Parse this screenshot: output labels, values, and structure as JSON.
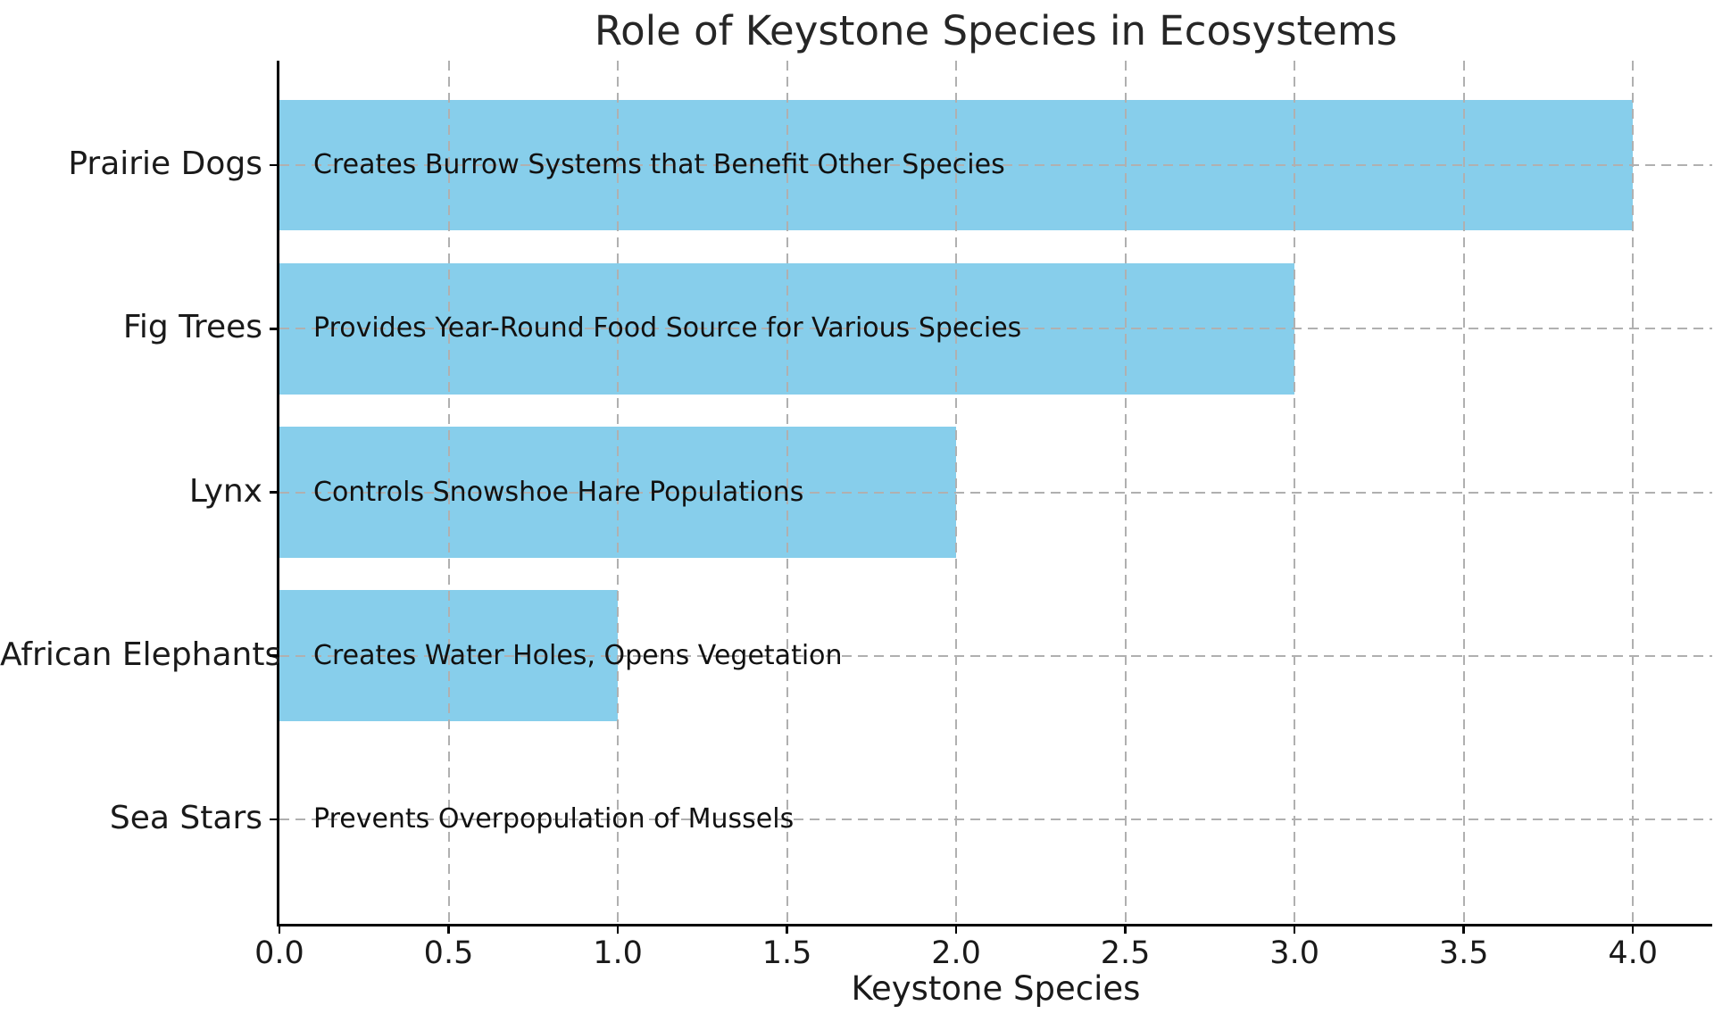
{
  "chart_data": {
    "type": "bar",
    "orientation": "horizontal",
    "title": "Role of Keystone Species in Ecosystems",
    "xlabel": "Keystone Species",
    "ylabel": "",
    "categories": [
      "Prairie Dogs",
      "Fig Trees",
      "Lynx",
      "African Elephants",
      "Sea Stars"
    ],
    "values": [
      4,
      3,
      2,
      1,
      0
    ],
    "bar_annotations": [
      "Creates Burrow Systems that Benefit Other Species",
      "Provides Year-Round Food Source for Various Species",
      "Controls Snowshoe Hare Populations",
      "Creates Water Holes, Opens Vegetation",
      "Prevents Overpopulation of Mussels"
    ],
    "x_ticks": [
      "0.0",
      "0.5",
      "1.0",
      "1.5",
      "2.0",
      "2.5",
      "3.0",
      "3.5",
      "4.0"
    ],
    "xlim": [
      0,
      4.23
    ],
    "grid": "dashed",
    "legend": "none",
    "colors": {
      "bar": "#87CEEB",
      "grid": "#b0b0b0",
      "axis": "#000000",
      "text": "#1a1a1a",
      "background": "#ffffff"
    }
  }
}
